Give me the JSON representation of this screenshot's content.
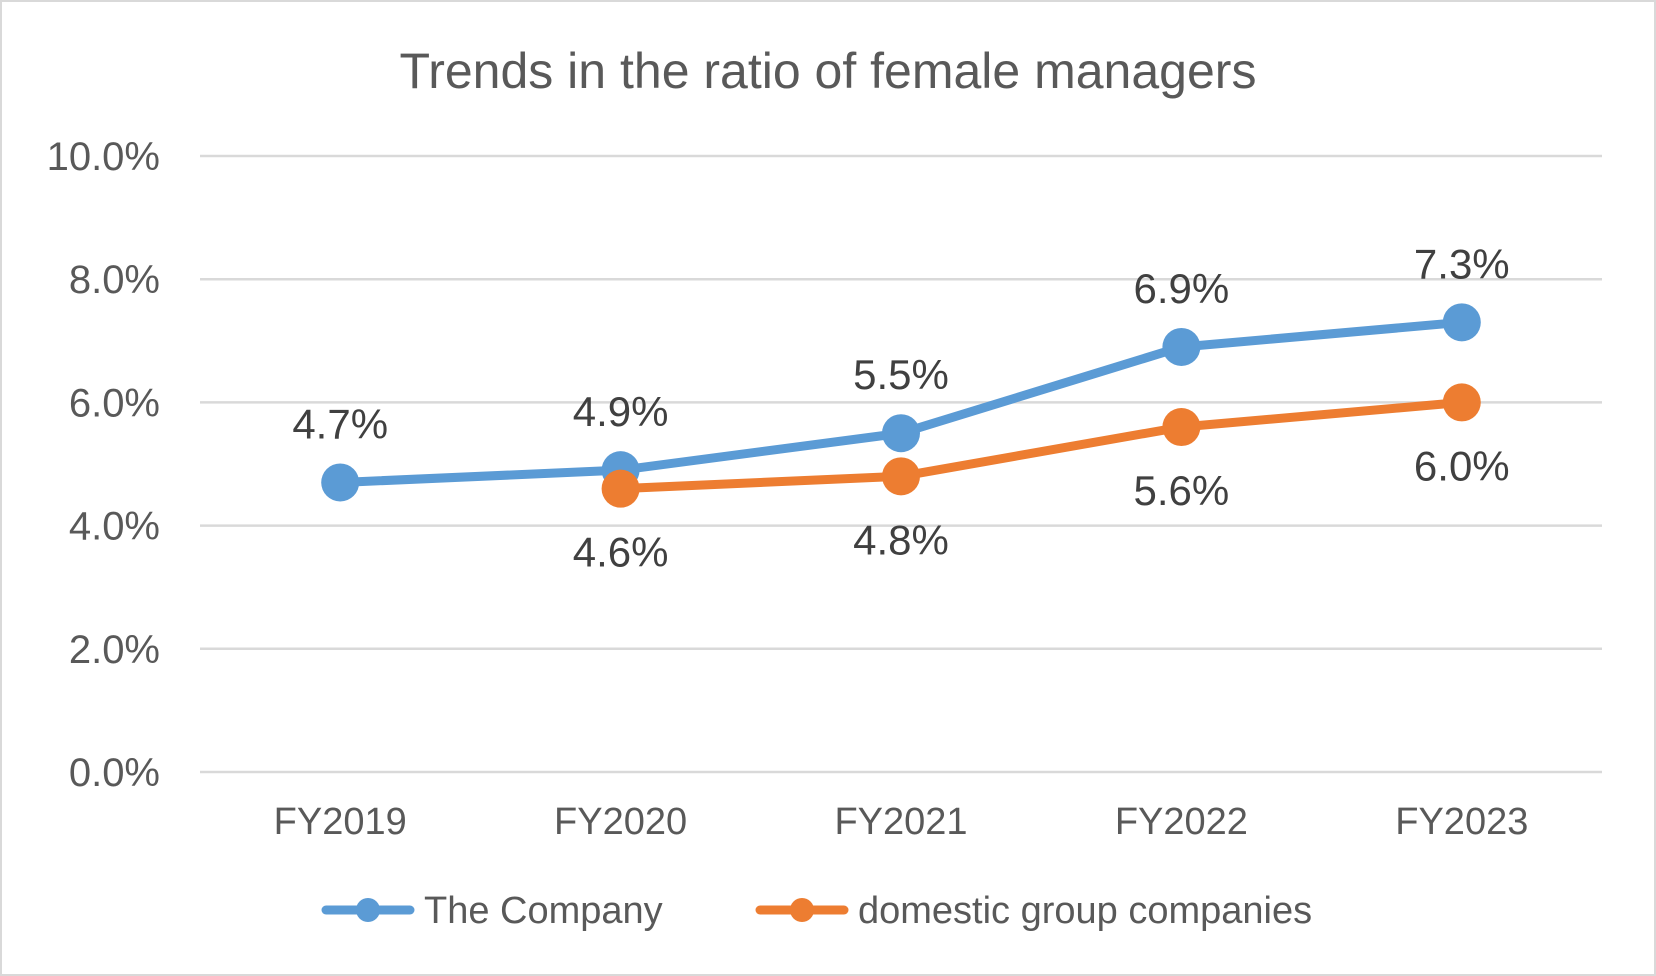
{
  "chart_data": {
    "type": "line",
    "title": "Trends in the ratio of female managers",
    "xlabel": "",
    "ylabel": "",
    "categories": [
      "FY2019",
      "FY2020",
      "FY2021",
      "FY2022",
      "FY2023"
    ],
    "ylim": [
      0,
      10
    ],
    "yticks": [
      0,
      2,
      4,
      6,
      8,
      10
    ],
    "ytick_labels": [
      "0.0%",
      "2.0%",
      "4.0%",
      "6.0%",
      "8.0%",
      "10.0%"
    ],
    "grid": true,
    "legend_position": "bottom",
    "series": [
      {
        "name": "The Company",
        "color": "#5b9bd5",
        "values": [
          4.7,
          4.9,
          5.5,
          6.9,
          7.3
        ],
        "labels": [
          "4.7%",
          "4.9%",
          "5.5%",
          "6.9%",
          "7.3%"
        ],
        "label_position": "above"
      },
      {
        "name": "domestic group companies",
        "color": "#ed7d31",
        "values": [
          null,
          4.6,
          4.8,
          5.6,
          6.0
        ],
        "labels": [
          "",
          "4.6%",
          "4.8%",
          "5.6%",
          "6.0%"
        ],
        "label_position": "below"
      }
    ]
  }
}
